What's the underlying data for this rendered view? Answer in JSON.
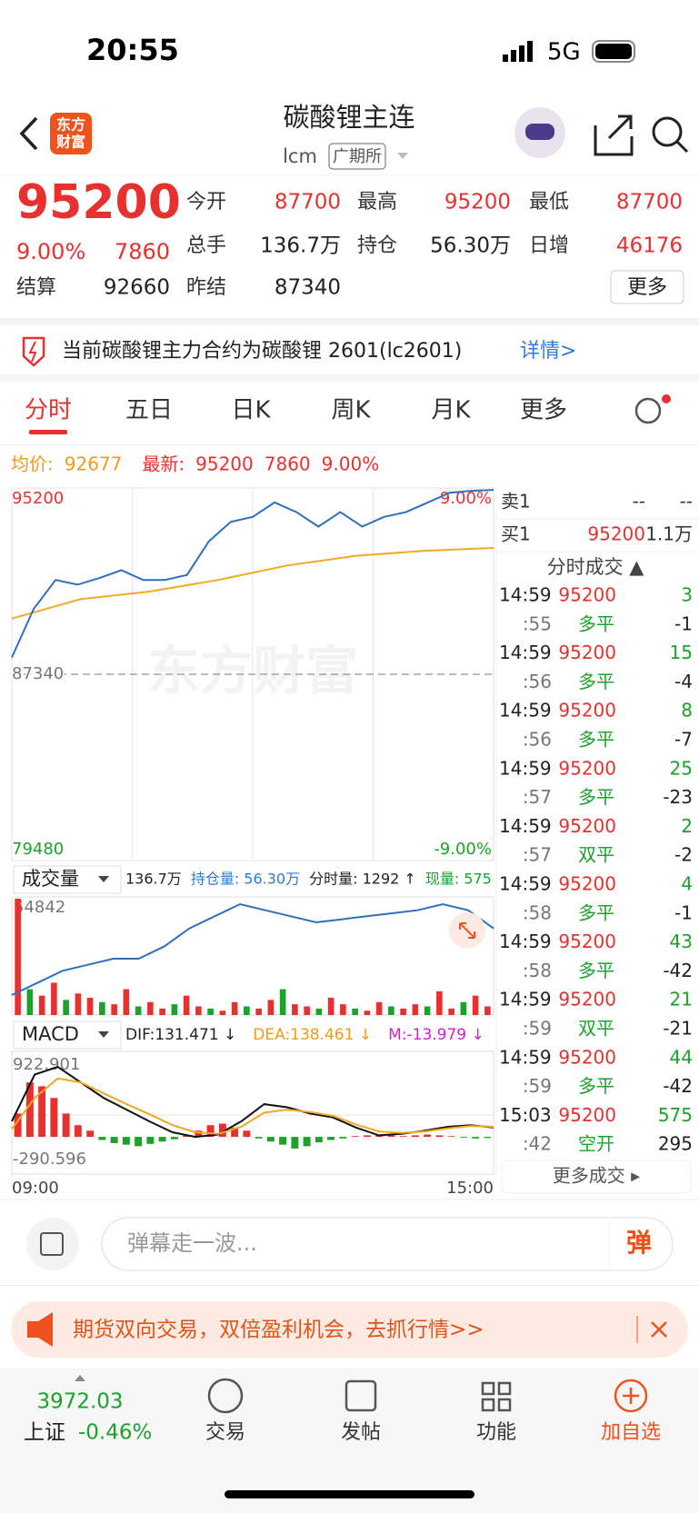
{
  "status": {
    "time": "20:55",
    "network": "5G"
  },
  "header": {
    "logo": [
      "东方",
      "财富"
    ],
    "title": "碳酸锂主连",
    "code": "lcm",
    "exchange": "广期所"
  },
  "quote": {
    "price": "95200",
    "change_pct": "9.00%",
    "change": "7860",
    "fields": [
      {
        "label": "今开",
        "value": "87700"
      },
      {
        "label": "最高",
        "value": "95200"
      },
      {
        "label": "最低",
        "value": "87700"
      },
      {
        "label": "总手",
        "value": "136.7万"
      },
      {
        "label": "持仓",
        "value": "56.30万"
      },
      {
        "label": "日增",
        "value": "46176"
      },
      {
        "label": "结算",
        "value": "92660"
      },
      {
        "label": "昨结",
        "value": "87340"
      }
    ],
    "more": "更多"
  },
  "notice": {
    "text": "当前碳酸锂主力合约为碳酸锂 2601(lc2601)",
    "link": "详情>"
  },
  "tabs": [
    "分时",
    "五日",
    "日K",
    "周K",
    "月K",
    "更多"
  ],
  "info": {
    "avg_label": "均价:",
    "avg": "92677",
    "last_label": "最新:",
    "last": "95200",
    "change": "7860",
    "pct": "9.00%"
  },
  "chart_data": [
    {
      "type": "line",
      "watermark": "东方财富",
      "ylim": [
        79480,
        95200
      ],
      "yticks": [
        79480,
        87340,
        95200
      ],
      "y2lim": [
        -9,
        9
      ],
      "y2ticks": [
        {
          "value": -9,
          "label": "-9.00%"
        },
        {
          "value": 9,
          "label": "9.00%"
        }
      ],
      "grid": true,
      "series": [
        {
          "color": "#2e6fc0",
          "values": [
            88050,
            90100,
            91320,
            91120,
            91400,
            91730,
            91320,
            91320,
            91530,
            92950,
            93770,
            93980,
            94590,
            94180,
            93570,
            94180,
            93570,
            93980,
            94180,
            94590,
            95000,
            95080,
            95120
          ]
        },
        {
          "color": "#f5a623",
          "values": [
            89690,
            90510,
            90830,
            91320,
            91930,
            92340,
            92550,
            92670
          ]
        }
      ]
    },
    {
      "type": "bar",
      "selector": "成交量",
      "header": [
        "136.7万",
        "持仓量: 56.30万",
        "分时量: 1292 ↑",
        "现量: 575"
      ],
      "ylim": [
        0,
        54842
      ],
      "yticks": [
        54842
      ],
      "values": [
        54000,
        12000,
        9000,
        15000,
        7000,
        10000,
        8000,
        6000,
        5000,
        12000,
        4000,
        6000,
        3000,
        5000,
        9000,
        4000,
        3000,
        2000,
        6000,
        4000,
        3000,
        7000,
        12000,
        5000,
        4000,
        3000,
        8000,
        5000,
        3000,
        2000,
        6000,
        4000,
        3000,
        5000,
        4000,
        11000,
        3000,
        6000,
        9000,
        4000
      ],
      "series": [
        {
          "color": "#2e6fc0",
          "values": [
            55.2,
            55.4,
            55.6,
            55.7,
            55.8,
            55.8,
            56.0,
            56.3,
            56.5,
            56.7,
            56.6,
            56.5,
            56.4,
            56.45,
            56.5,
            56.55,
            56.6,
            56.7,
            56.6,
            56.3
          ]
        }
      ]
    },
    {
      "type": "macd",
      "selector": "MACD",
      "header": [
        "DIF:131.471 ↓",
        "DEA:138.461 ↓",
        "M:-13.979 ↓"
      ],
      "ylim": [
        -290.596,
        922.901
      ],
      "yticks": [
        -290.596,
        922.901
      ],
      "x_labels": [
        "09:00",
        "15:00"
      ],
      "series": [
        {
          "color": "#111111",
          "values": [
            200,
            800,
            900,
            700,
            500,
            350,
            200,
            60,
            0,
            30,
            200,
            420,
            380,
            300,
            250,
            120,
            20,
            40,
            80,
            130,
            150,
            120
          ]
        },
        {
          "color": "#f5a623",
          "values": [
            100,
            500,
            750,
            700,
            560,
            420,
            290,
            150,
            60,
            40,
            130,
            310,
            350,
            320,
            270,
            160,
            70,
            50,
            70,
            110,
            140,
            130
          ]
        }
      ],
      "values": [
        300,
        700,
        650,
        500,
        300,
        150,
        80,
        -40,
        -80,
        -100,
        -120,
        -90,
        -60,
        -30,
        20,
        80,
        150,
        170,
        120,
        80,
        -20,
        -60,
        -100,
        -150,
        -120,
        -70,
        -40,
        -20,
        10,
        20,
        30,
        20,
        10,
        20,
        30,
        20,
        10,
        -10,
        -20,
        -15
      ]
    }
  ],
  "trades": {
    "ask": [
      "卖1",
      "--",
      "--"
    ],
    "bid": [
      "买1",
      "95200",
      "1.1万"
    ],
    "title": "分时成交 ▲",
    "rows": [
      [
        "14:59",
        "95200",
        "3"
      ],
      [
        ":55",
        "多平",
        "-1"
      ],
      [
        "14:59",
        "95200",
        "15"
      ],
      [
        ":56",
        "多平",
        "-4"
      ],
      [
        "14:59",
        "95200",
        "8"
      ],
      [
        ":56",
        "多平",
        "-7"
      ],
      [
        "14:59",
        "95200",
        "25"
      ],
      [
        ":57",
        "多平",
        "-23"
      ],
      [
        "14:59",
        "95200",
        "2"
      ],
      [
        ":57",
        "双平",
        "-2"
      ],
      [
        "14:59",
        "95200",
        "4"
      ],
      [
        ":58",
        "多平",
        "-1"
      ],
      [
        "14:59",
        "95200",
        "43"
      ],
      [
        ":58",
        "多平",
        "-42"
      ],
      [
        "14:59",
        "95200",
        "21"
      ],
      [
        ":59",
        "双平",
        "-21"
      ],
      [
        "14:59",
        "95200",
        "44"
      ],
      [
        ":59",
        "多平",
        "-42"
      ],
      [
        "15:03",
        "95200",
        "575"
      ],
      [
        ":42",
        "空开",
        "295"
      ]
    ],
    "more": "更多成交 ▸"
  },
  "comment": {
    "placeholder": "弹幕走一波...",
    "button": "弹"
  },
  "banner": {
    "text": "期货双向交易，双倍盈利机会，去抓行情>>"
  },
  "nav": {
    "index_value": "3972.03",
    "index_name": "上证",
    "index_change": "-0.46%",
    "items": [
      "交易",
      "发帖",
      "功能",
      "加自选"
    ]
  }
}
